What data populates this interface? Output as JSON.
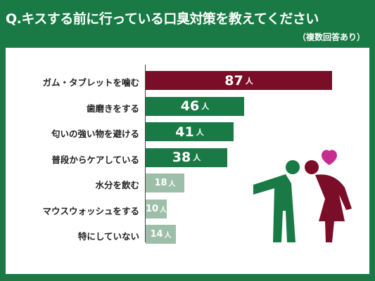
{
  "header": {
    "title": "Q.キスする前に行っている口臭対策を教えてください",
    "note": "（複数回答あり）"
  },
  "chart_data": {
    "type": "bar",
    "orientation": "horizontal",
    "unit": "人",
    "categories": [
      "ガム・タブレットを噛む",
      "歯磨きをする",
      "匂いの強い物を避ける",
      "普段からケアしている",
      "水分を飲む",
      "マウスウォッシュをする",
      "特にしていない"
    ],
    "values": [
      87,
      46,
      41,
      38,
      18,
      10,
      14
    ],
    "colors": [
      "#7a0d27",
      "#1a7a45",
      "#1a7a45",
      "#1a7a45",
      "#9dbfa9",
      "#9dbfa9",
      "#9dbfa9"
    ],
    "xlim": [
      0,
      100
    ],
    "grid": false,
    "legend": "none"
  },
  "colors": {
    "background": "#1a7a45",
    "panel": "#ffffff",
    "accent_dark_red": "#7a0d27",
    "heart": "#c62d8e"
  },
  "illustration": {
    "description_icons": [
      "man-figure-icon",
      "woman-figure-icon",
      "heart-icon"
    ]
  }
}
